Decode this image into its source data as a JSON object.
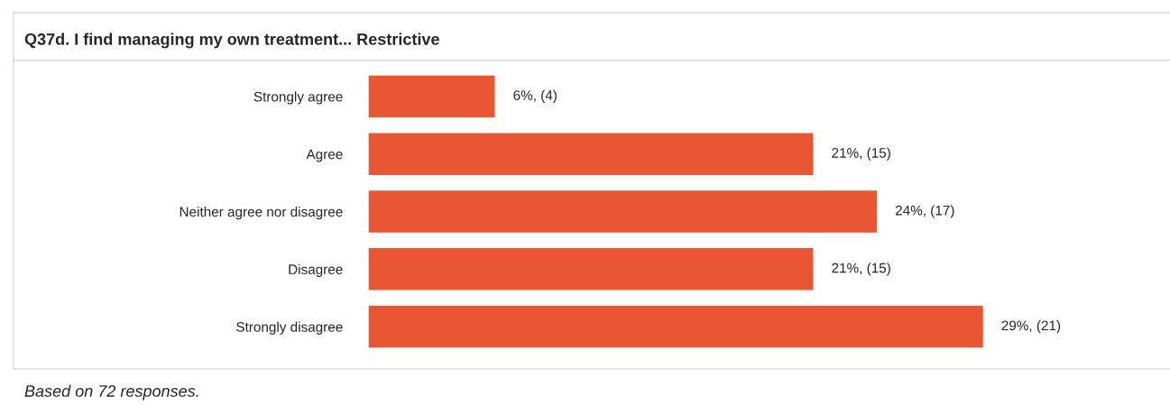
{
  "chart_data": {
    "type": "bar",
    "orientation": "horizontal",
    "title": "Q37d. I find managing my own treatment... Restrictive",
    "categories": [
      "Strongly agree",
      "Agree",
      "Neither agree nor disagree",
      "Disagree",
      "Strongly disagree"
    ],
    "values": [
      6,
      21,
      24,
      21,
      29
    ],
    "value_labels": [
      "6%, (4)",
      "21%, (15)",
      "24%, (17)",
      "21%, (15)",
      "29%, (21)"
    ],
    "color": "#e95634",
    "annotations": [
      "Based on 72 responses."
    ],
    "grid": false,
    "legend": false
  }
}
